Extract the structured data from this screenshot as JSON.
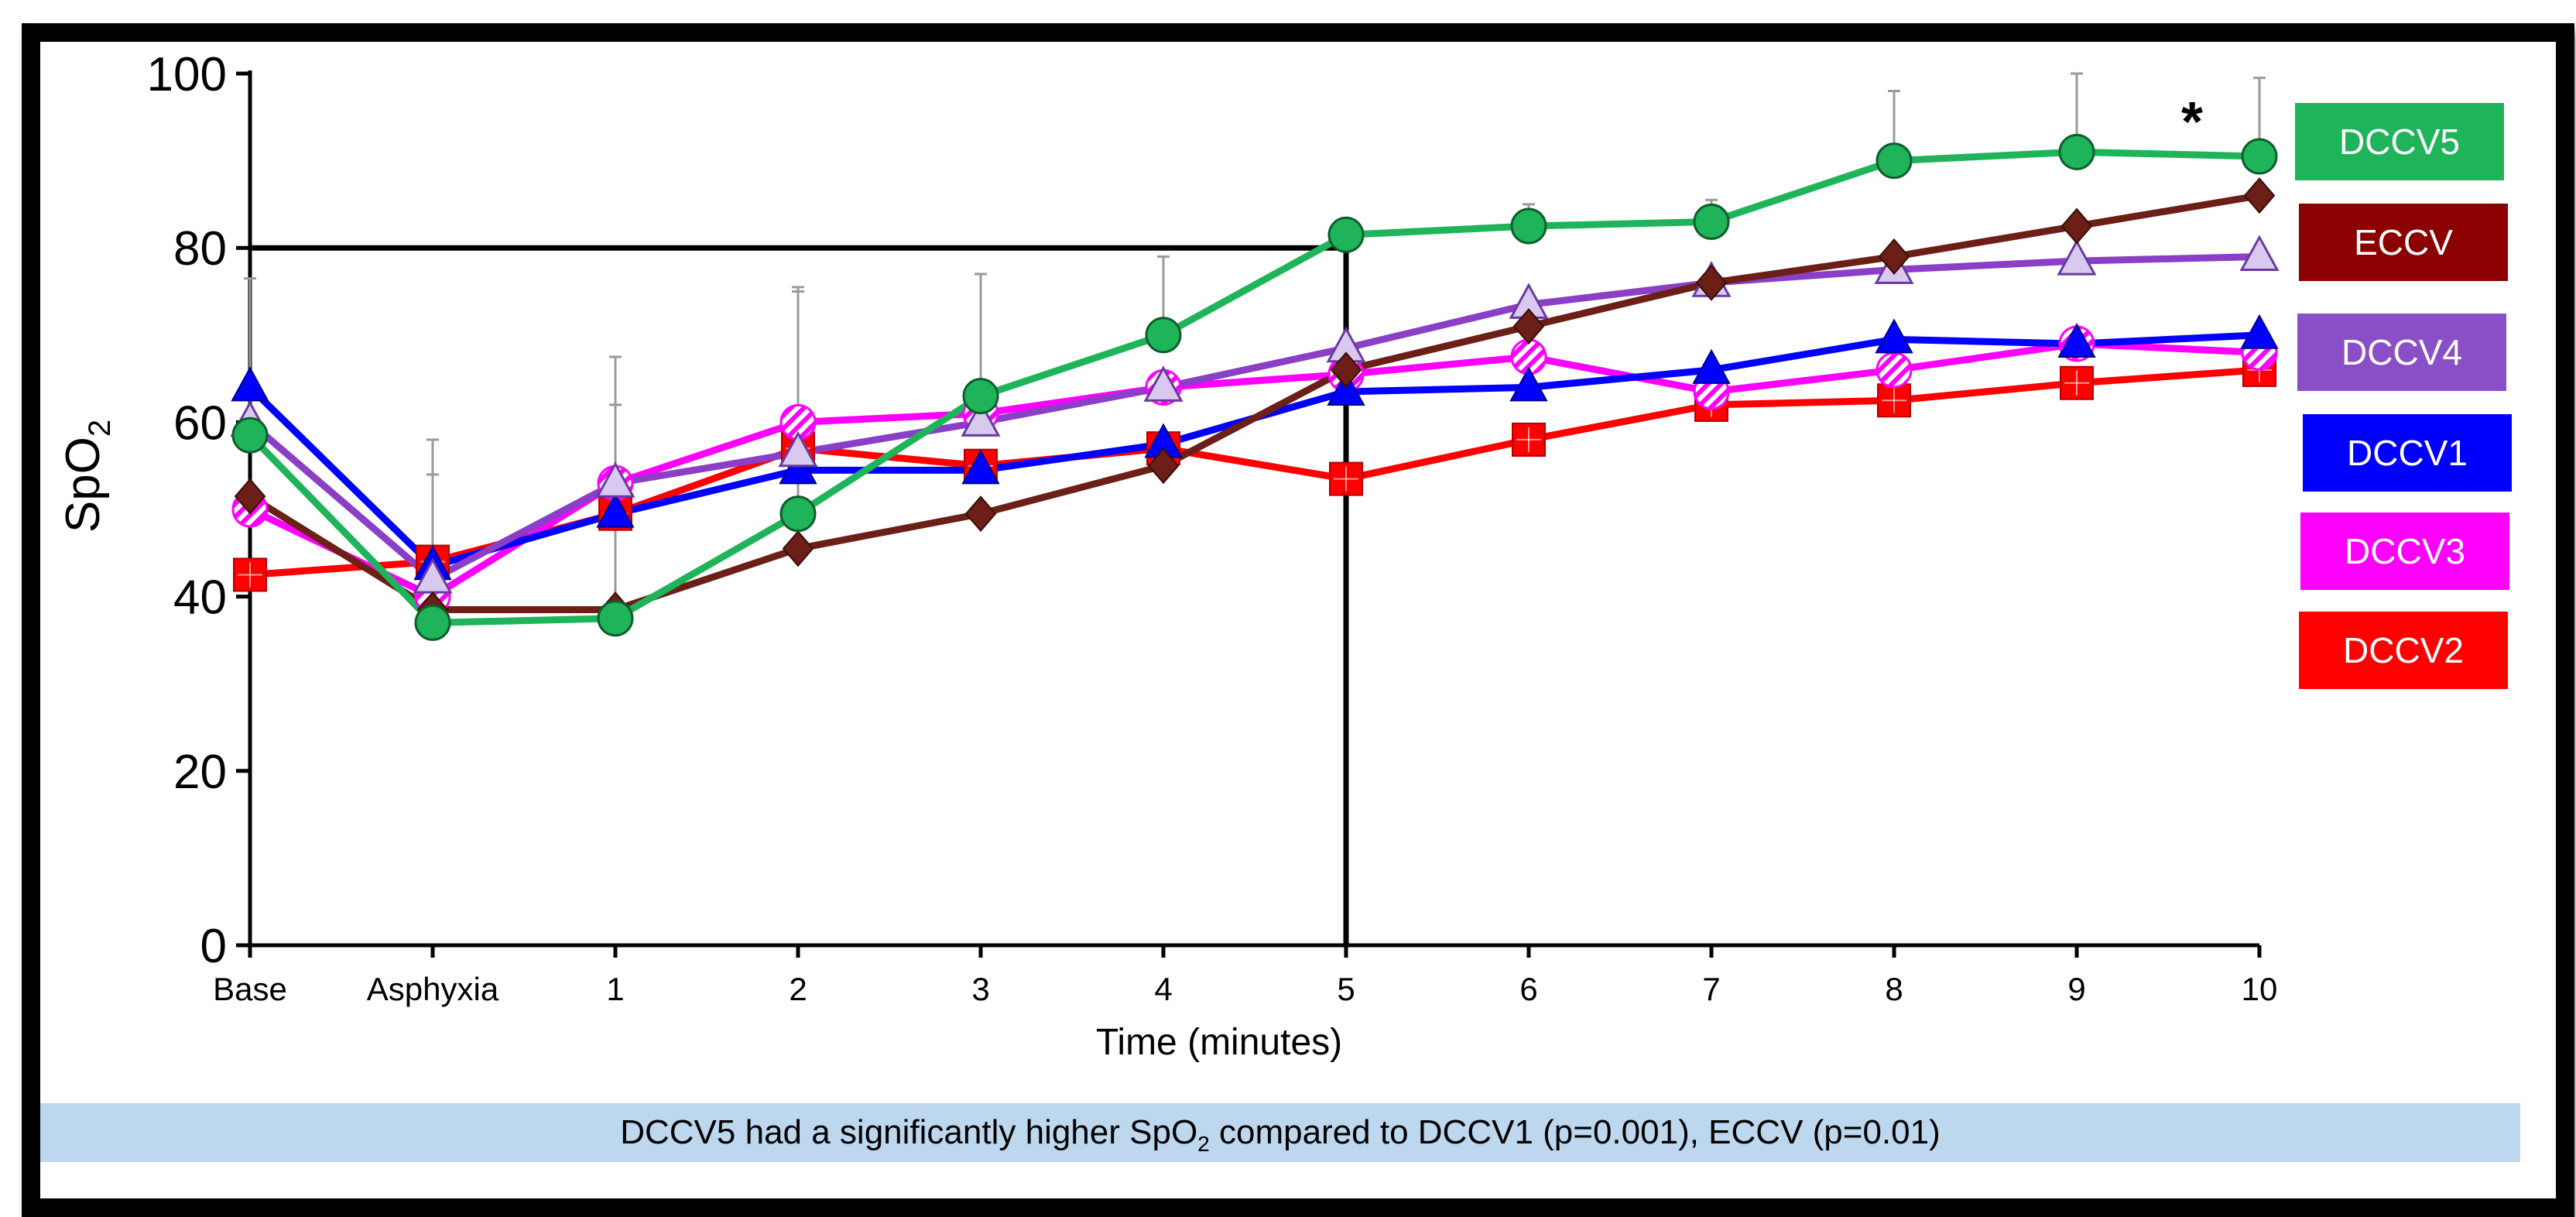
{
  "chart_data": {
    "type": "line",
    "ylabel": "SpO",
    "ylabel_sub": "2",
    "xlabel": "Time (minutes)",
    "ylim": [
      0,
      100
    ],
    "yticks": [
      0,
      20,
      40,
      60,
      80,
      100
    ],
    "categories": [
      "Base",
      "Asphyxia",
      "1",
      "2",
      "3",
      "4",
      "5",
      "6",
      "7",
      "8",
      "9",
      "10"
    ],
    "significance_mark": "*",
    "reference_lines": {
      "y": 80,
      "x_category": "5"
    },
    "series": [
      {
        "name": "DCCV2",
        "color": "#ff0000",
        "marker": "square",
        "values": [
          42.5,
          44,
          49.5,
          57,
          55,
          57,
          53.5,
          58,
          62,
          62.5,
          64.5,
          66
        ],
        "err_up": [
          0,
          0,
          0,
          0,
          0,
          0,
          0,
          0,
          0,
          0,
          0,
          0
        ]
      },
      {
        "name": "DCCV3",
        "color": "#ff00ff",
        "marker": "circle-striped",
        "values": [
          50,
          40,
          53,
          60,
          61,
          64,
          65.5,
          67.5,
          63.5,
          66,
          69,
          68
        ],
        "err_up": [
          0,
          14,
          9,
          15,
          0,
          0,
          0,
          0,
          0,
          0,
          0,
          0
        ]
      },
      {
        "name": "DCCV1",
        "color": "#0000ff",
        "marker": "triangle",
        "values": [
          64,
          43.5,
          49.5,
          54.5,
          54.5,
          57.5,
          63.5,
          64,
          66,
          69.5,
          69,
          70
        ],
        "err_up": [
          0,
          0,
          0,
          0,
          0,
          0,
          0,
          0,
          0,
          0,
          0,
          0
        ]
      },
      {
        "name": "DCCV4",
        "color": "#8a3fc6",
        "marker": "triangle-light",
        "values": [
          60,
          42,
          53,
          56.5,
          60,
          64,
          68.5,
          73.5,
          76,
          77.5,
          78.5,
          79
        ],
        "err_up": [
          0,
          0,
          0,
          0,
          0,
          0,
          0,
          0,
          0,
          0,
          0,
          0
        ]
      },
      {
        "name": "ECCV",
        "color": "#6b1f16",
        "marker": "diamond",
        "values": [
          51.5,
          38.5,
          38.5,
          45.5,
          49.5,
          55,
          66,
          71,
          76,
          79,
          82.5,
          86
        ],
        "err_up": [
          0,
          0,
          0,
          0,
          0,
          0,
          0,
          0,
          0,
          0,
          0,
          0
        ]
      },
      {
        "name": "DCCV5",
        "color": "#1fb35a",
        "marker": "circle",
        "values": [
          58.5,
          37,
          37.5,
          49.5,
          63,
          70,
          81.5,
          82.5,
          83,
          90,
          91,
          90.5
        ],
        "err_up": [
          18,
          21,
          30,
          26,
          14,
          9,
          0,
          2.5,
          2.5,
          8,
          9,
          9
        ]
      }
    ],
    "legend_order": [
      "DCCV5",
      "ECCV",
      "DCCV4",
      "DCCV1",
      "DCCV3",
      "DCCV2"
    ],
    "legend_colors": {
      "DCCV5": "#1fb35a",
      "ECCV": "#8b0000",
      "DCCV4": "#8a4fc6",
      "DCCV1": "#0000ff",
      "DCCV3": "#ff00ff",
      "DCCV2": "#ff0000"
    }
  },
  "caption": {
    "text_before": "DCCV5 had a significantly higher SpO",
    "text_sub": "2",
    "text_after": " compared to DCCV1 (p=0.001), ECCV (p=0.01)"
  }
}
